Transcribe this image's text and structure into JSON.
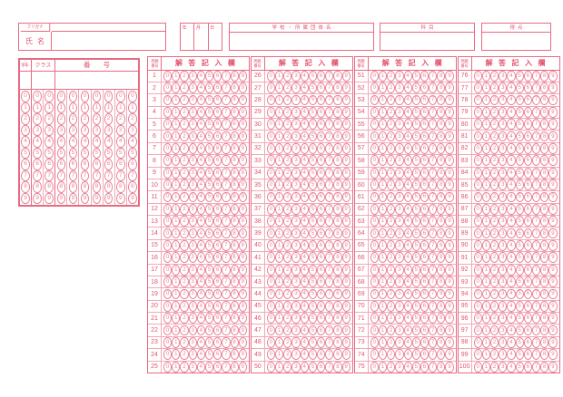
{
  "colors": {
    "line": "#e96a80",
    "line_light": "#f2a9b8",
    "ink": "#e4556f",
    "bubble": "#e88296",
    "bg": "#ffffff"
  },
  "header": {
    "furigana_label": "フリガナ",
    "name_label": "氏名",
    "year_label": "年",
    "month_label": "月",
    "day_label": "日",
    "school_label": "学校・所属団体名",
    "subject_label": "科目",
    "score_label": "得点"
  },
  "id_block": {
    "grade_label": "学年",
    "class_label": "クラス",
    "number_label": "番号",
    "grade_columns": 1,
    "class_columns": 2,
    "number_columns": 7,
    "digits": [
      "0",
      "1",
      "2",
      "3",
      "4",
      "5",
      "6",
      "7",
      "8",
      "9"
    ]
  },
  "answer_grid": {
    "question_label_line1": "問題",
    "question_label_line2": "番号",
    "answer_label": "解答記入欄",
    "digits": [
      "0",
      "1",
      "2",
      "3",
      "4",
      "5",
      "6",
      "7",
      "8",
      "9"
    ],
    "groups": [
      {
        "start": 1,
        "end": 25
      },
      {
        "start": 26,
        "end": 50
      },
      {
        "start": 51,
        "end": 75
      },
      {
        "start": 76,
        "end": 100
      }
    ]
  }
}
